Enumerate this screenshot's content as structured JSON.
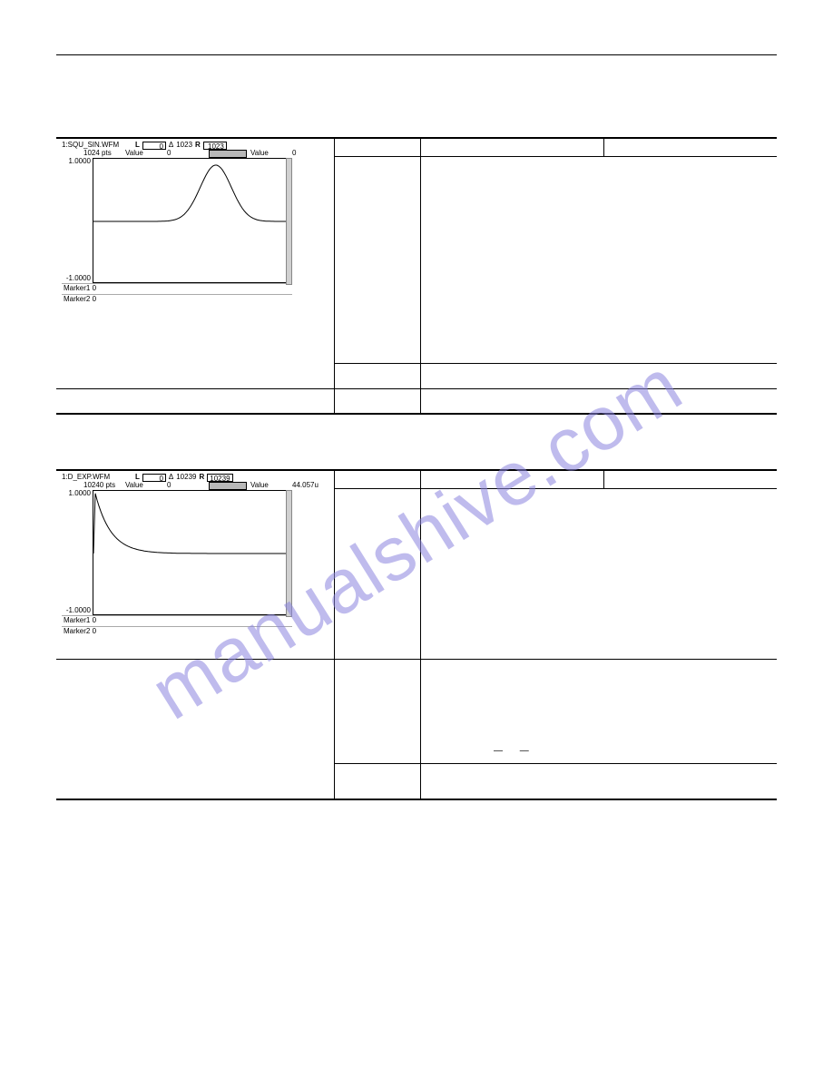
{
  "watermark": "manualshive.com",
  "table1": {
    "wfm": {
      "title": "1:SQU_SIN.WFM",
      "pts": "1024 pts",
      "L": "0",
      "delta_label": "Δ",
      "delta": "1023",
      "R": "1023",
      "valueL_label": "Value",
      "valueL": "0",
      "valueR_label": "Value",
      "valueR": "0",
      "ytop": "1.0000",
      "ybot": "-1.0000",
      "marker1": "Marker1  0",
      "marker2": "Marker2  0",
      "curve_type": "gaussian_pulse",
      "curve_baseline_y": 0.5,
      "curve_peak_x": 0.63,
      "curve_peak_y": 0.05,
      "curve_width": 0.08,
      "stroke": "#000000",
      "stroke_width": 1
    }
  },
  "table2": {
    "wfm": {
      "title": "1:D_EXP.WFM",
      "pts": "10240 pts",
      "L": "0",
      "delta_label": "Δ",
      "delta": "10239",
      "R": "10239",
      "valueL_label": "Value",
      "valueL": "0",
      "valueR_label": "Value",
      "valueR": "44.057u",
      "ytop": "1.0000",
      "ybot": "-1.0000",
      "marker1": "Marker1  0",
      "marker2": "Marker2  0",
      "curve_type": "exp_decay",
      "curve_start_y": 0.02,
      "curve_floor_y": 0.5,
      "curve_tau": 0.08,
      "stroke": "#000000",
      "stroke_width": 1
    },
    "dashes": "—   —"
  }
}
